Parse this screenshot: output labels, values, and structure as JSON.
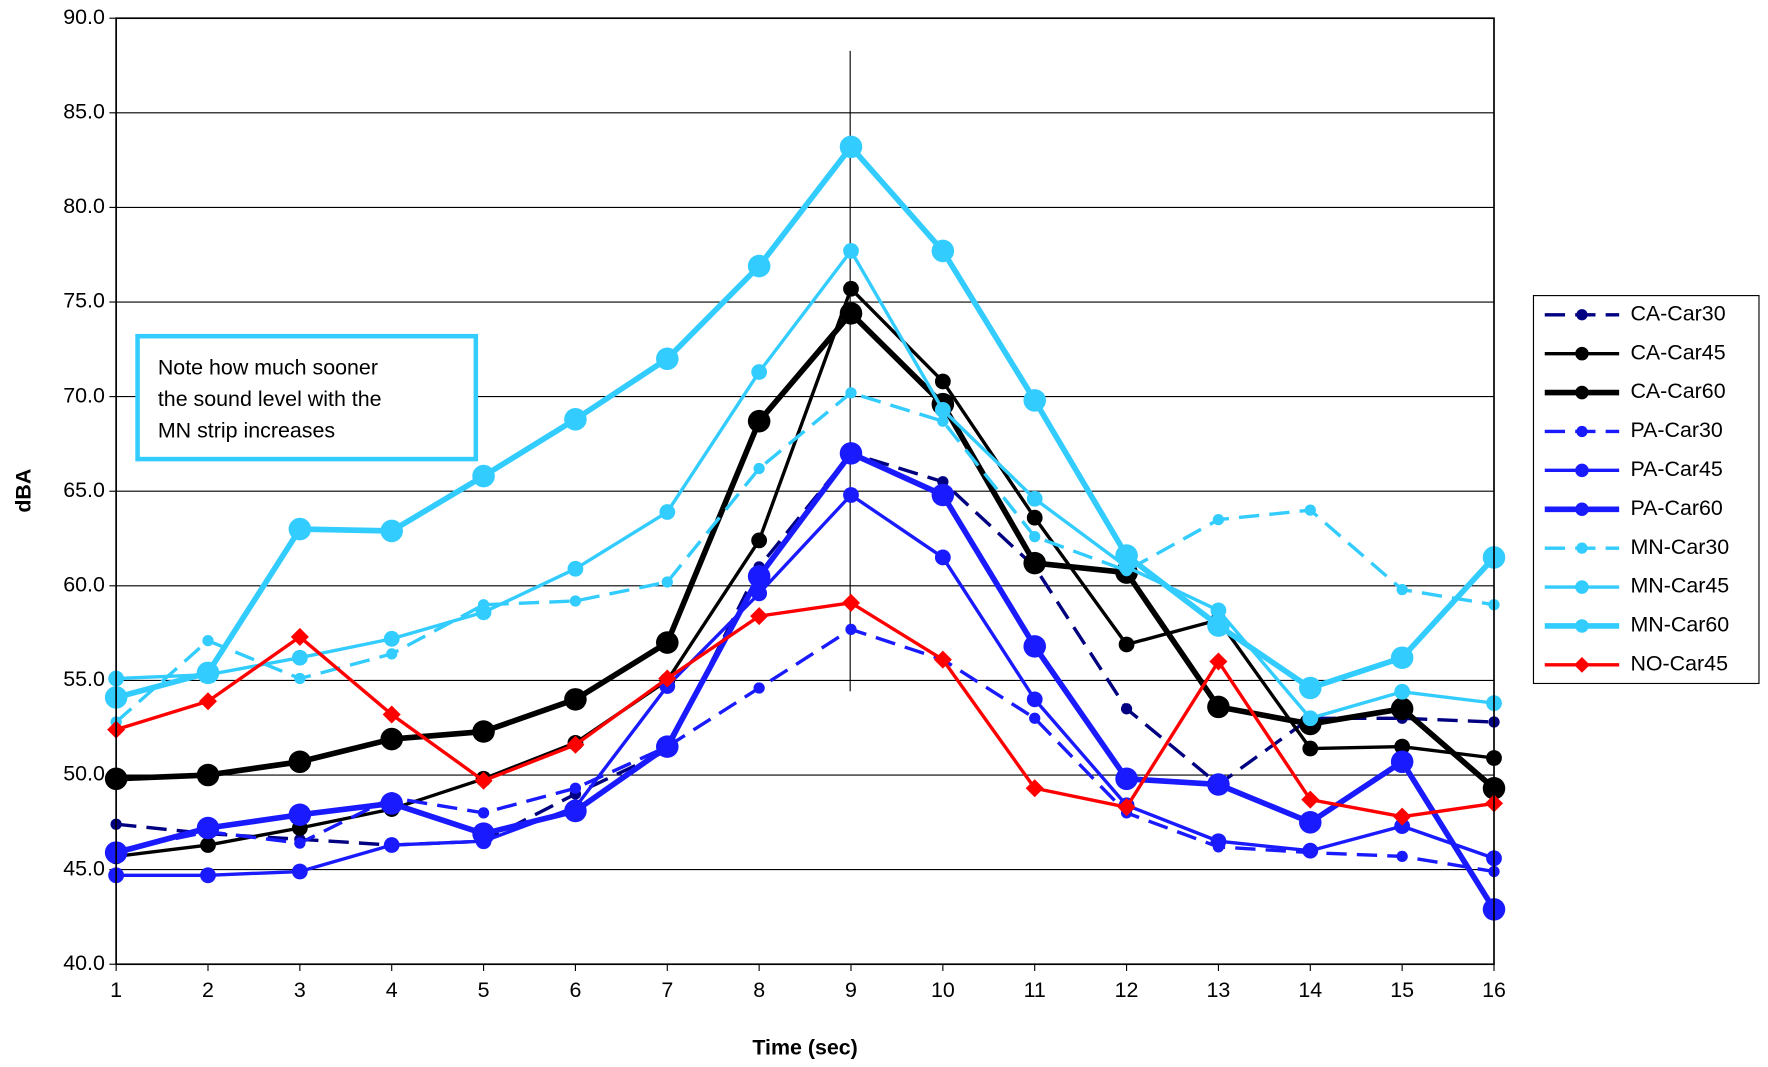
{
  "chart_data": {
    "type": "line",
    "x_label": "Time (sec)",
    "y_label": "dBA",
    "annotation": [
      "Note how much sooner",
      "the sound level with the",
      "MN strip increases"
    ],
    "x": [
      1,
      2,
      3,
      4,
      5,
      6,
      7,
      8,
      9,
      10,
      11,
      12,
      13,
      14,
      15,
      16
    ],
    "xlim": [
      1,
      16
    ],
    "xticks": [
      1,
      2,
      3,
      4,
      5,
      6,
      7,
      8,
      9,
      10,
      11,
      12,
      13,
      14,
      15,
      16
    ],
    "ylim": [
      40,
      90
    ],
    "yticks": [
      {
        "value": 40,
        "label": "40.0"
      },
      {
        "value": 45,
        "label": "45.0"
      },
      {
        "value": 50,
        "label": "50.0"
      },
      {
        "value": 55,
        "label": "55.0"
      },
      {
        "value": 60,
        "label": "60.0"
      },
      {
        "value": 65,
        "label": "65.0"
      },
      {
        "value": 70,
        "label": "70.0"
      },
      {
        "value": 75,
        "label": "75.0"
      },
      {
        "value": 80,
        "label": "80.0"
      },
      {
        "value": 85,
        "label": "85.0"
      },
      {
        "value": 90,
        "label": "90.0"
      }
    ],
    "grid": true,
    "legend": "right",
    "series": [
      {
        "name": "CA-Car30",
        "color": "#000080",
        "dashed": true,
        "line_width": 3,
        "marker": "circle",
        "marker_size": 5,
        "values": [
          47.4,
          46.9,
          46.6,
          46.3,
          46.5,
          49.0,
          51.3,
          61.0,
          67.0,
          65.5,
          61.0,
          53.5,
          49.5,
          53.0,
          53.0,
          52.8
        ]
      },
      {
        "name": "CA-Car45",
        "color": "#000000",
        "dashed": false,
        "line_width": 3,
        "marker": "circle",
        "marker_size": 7,
        "values": [
          45.7,
          46.3,
          47.2,
          48.2,
          49.8,
          51.7,
          55.0,
          62.4,
          75.7,
          70.8,
          63.6,
          56.9,
          58.2,
          51.4,
          51.5,
          50.9
        ]
      },
      {
        "name": "CA-Car60",
        "color": "#000000",
        "dashed": false,
        "line_width": 5,
        "marker": "circle",
        "marker_size": 10,
        "values": [
          49.8,
          50.0,
          50.7,
          51.9,
          52.3,
          54.0,
          57.0,
          68.7,
          74.4,
          69.6,
          61.2,
          60.7,
          53.6,
          52.7,
          53.5,
          49.3
        ]
      },
      {
        "name": "PA-Car30",
        "color": "#1a1aff",
        "dashed": true,
        "line_width": 3,
        "marker": "circle",
        "marker_size": 5,
        "values": [
          46.0,
          47.0,
          46.4,
          48.8,
          48.0,
          49.3,
          51.5,
          54.6,
          57.7,
          56.1,
          53.0,
          48.0,
          46.2,
          45.9,
          45.7,
          44.9
        ]
      },
      {
        "name": "PA-Car45",
        "color": "#1a1aff",
        "dashed": false,
        "line_width": 3,
        "marker": "circle",
        "marker_size": 7,
        "values": [
          44.7,
          44.7,
          44.9,
          46.3,
          46.5,
          48.3,
          54.7,
          59.6,
          64.8,
          61.5,
          54.0,
          48.4,
          46.5,
          46.0,
          47.3,
          45.6
        ]
      },
      {
        "name": "PA-Car60",
        "color": "#1a1aff",
        "dashed": false,
        "line_width": 5,
        "marker": "circle",
        "marker_size": 10,
        "values": [
          45.9,
          47.2,
          47.9,
          48.5,
          46.9,
          48.1,
          51.5,
          60.5,
          67.0,
          64.8,
          56.8,
          49.8,
          49.5,
          47.5,
          50.7,
          42.9
        ]
      },
      {
        "name": "MN-Car30",
        "color": "#33ccff",
        "dashed": true,
        "line_width": 3,
        "marker": "circle",
        "marker_size": 5,
        "values": [
          52.8,
          57.1,
          55.1,
          56.4,
          59.0,
          59.2,
          60.2,
          66.2,
          70.2,
          68.7,
          62.6,
          60.8,
          63.5,
          64.0,
          59.8,
          59.0
        ]
      },
      {
        "name": "MN-Car45",
        "color": "#33ccff",
        "dashed": false,
        "line_width": 3,
        "marker": "circle",
        "marker_size": 7,
        "values": [
          55.1,
          55.3,
          56.2,
          57.2,
          58.6,
          60.9,
          63.9,
          71.3,
          77.7,
          69.3,
          64.6,
          61.0,
          58.7,
          53.0,
          54.4,
          53.8
        ]
      },
      {
        "name": "MN-Car60",
        "color": "#33ccff",
        "dashed": false,
        "line_width": 5,
        "marker": "circle",
        "marker_size": 10,
        "values": [
          54.1,
          55.4,
          63.0,
          62.9,
          65.8,
          68.8,
          72.0,
          76.9,
          83.2,
          77.7,
          69.8,
          61.6,
          57.9,
          54.6,
          56.2,
          61.5
        ]
      },
      {
        "name": "NO-Car45",
        "color": "#ff0000",
        "dashed": false,
        "line_width": 3,
        "marker": "diamond",
        "marker_size": 7,
        "values": [
          52.4,
          53.9,
          57.3,
          53.2,
          49.7,
          51.6,
          55.1,
          58.4,
          59.1,
          56.1,
          49.3,
          48.3,
          56.0,
          48.7,
          47.8,
          48.5
        ]
      }
    ]
  }
}
